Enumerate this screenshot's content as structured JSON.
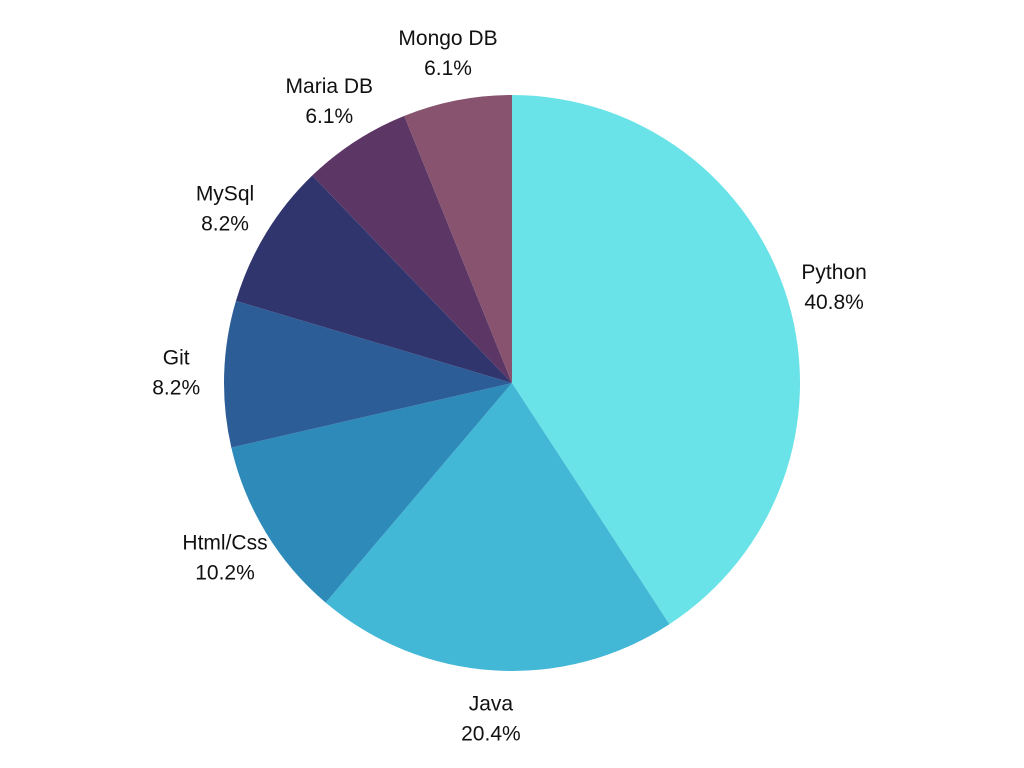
{
  "chart_data": {
    "type": "pie",
    "start_angle_deg": 0,
    "direction": "clockwise",
    "slices": [
      {
        "label": "Python",
        "percent_label": "40.8%",
        "value": 40.8,
        "color": "#69E3E8"
      },
      {
        "label": "Java",
        "percent_label": "20.4%",
        "value": 20.4,
        "color": "#42B7D6"
      },
      {
        "label": "Html/Css",
        "percent_label": "10.2%",
        "value": 10.2,
        "color": "#2D8AB9"
      },
      {
        "label": "Git",
        "percent_label": "8.2%",
        "value": 8.2,
        "color": "#2D5D97"
      },
      {
        "label": "MySql",
        "percent_label": "8.2%",
        "value": 8.2,
        "color": "#30356E"
      },
      {
        "label": "Maria DB",
        "percent_label": "6.1%",
        "value": 6.1,
        "color": "#5C3766"
      },
      {
        "label": "Mongo DB",
        "percent_label": "6.1%",
        "value": 6.1,
        "color": "#87536F"
      }
    ]
  }
}
